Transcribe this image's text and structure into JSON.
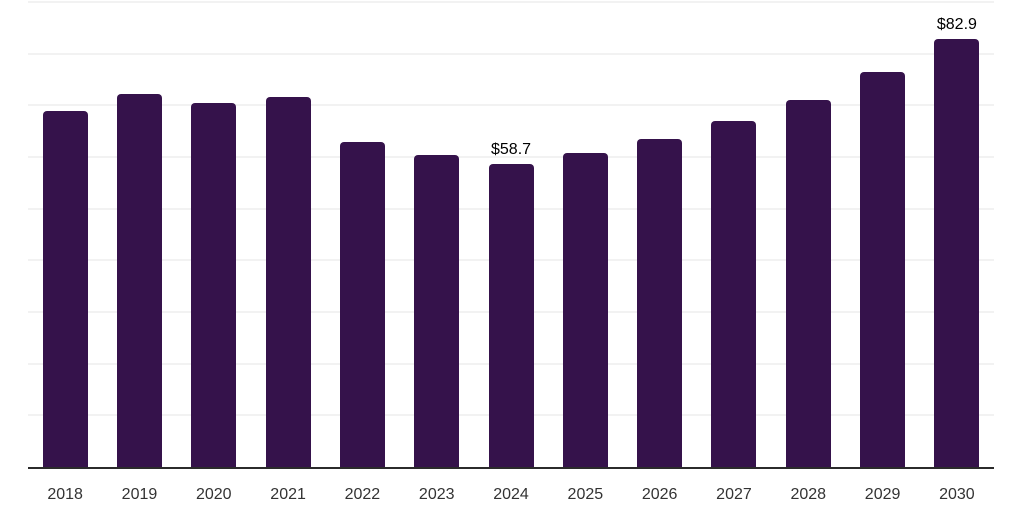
{
  "chart_data": {
    "type": "bar",
    "title": "",
    "xlabel": "",
    "ylabel": "",
    "categories": [
      "2018",
      "2019",
      "2020",
      "2021",
      "2022",
      "2023",
      "2024",
      "2025",
      "2026",
      "2027",
      "2028",
      "2029",
      "2030"
    ],
    "values": [
      69.0,
      72.2,
      70.4,
      71.7,
      63.0,
      60.3,
      58.7,
      60.8,
      63.4,
      66.9,
      71.1,
      76.5,
      82.9
    ],
    "point_labels": [
      "",
      "",
      "",
      "",
      "",
      "",
      "$58.7",
      "",
      "",
      "",
      "",
      "",
      "$82.9"
    ],
    "ylim": [
      0,
      90
    ],
    "gridline_step": 10,
    "grid_visible": true,
    "legend_position": "none",
    "colors": {
      "bar": "#35124B",
      "gridline": "#f2f2f2",
      "axis_line": "#2b2b2b",
      "tick_label": "#333333",
      "value_label": "#000000"
    }
  }
}
